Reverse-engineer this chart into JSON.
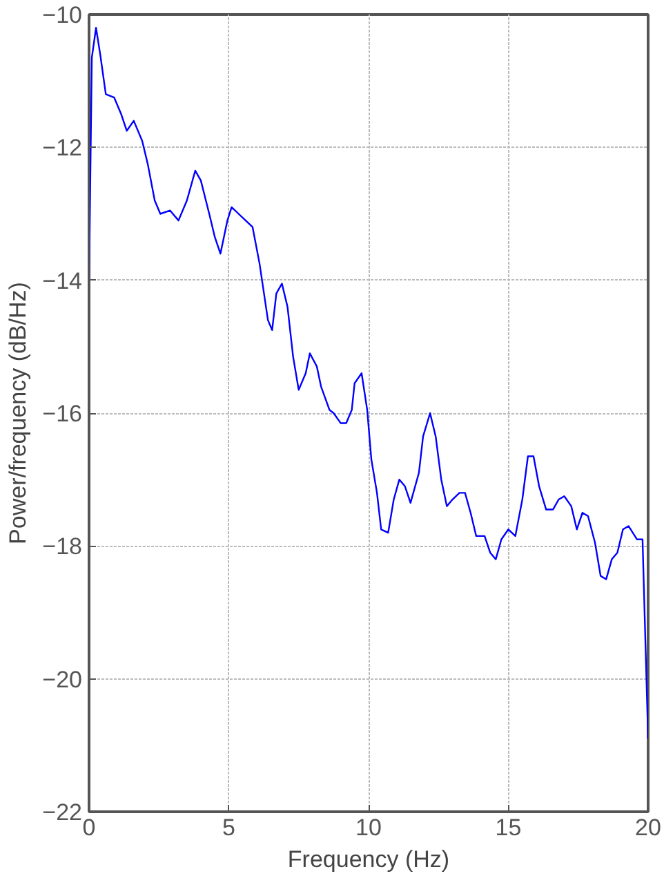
{
  "chart_data": {
    "type": "line",
    "xlabel": "Frequency (Hz)",
    "ylabel": "Power/frequency (dB/Hz)",
    "xlim": [
      0,
      20
    ],
    "ylim": [
      -22,
      -10
    ],
    "xticks": [
      0,
      5,
      10,
      15,
      20
    ],
    "yticks": [
      -22,
      -20,
      -18,
      -16,
      -14,
      -12,
      -10
    ],
    "grid": true,
    "line_style": "solid",
    "series": [
      {
        "color": "#0000ff",
        "x": [
          0,
          0.1,
          0.25,
          0.4,
          0.6,
          0.9,
          1.15,
          1.35,
          1.6,
          1.9,
          2.1,
          2.35,
          2.55,
          2.9,
          3.2,
          3.5,
          3.8,
          4.0,
          4.3,
          4.5,
          4.7,
          4.95,
          5.1,
          5.35,
          5.6,
          5.85,
          6.1,
          6.4,
          6.55,
          6.7,
          6.9,
          7.1,
          7.3,
          7.5,
          7.75,
          7.9,
          8.15,
          8.3,
          8.6,
          8.75,
          9.0,
          9.2,
          9.4,
          9.5,
          9.75,
          9.95,
          10.1,
          10.3,
          10.45,
          10.7,
          10.9,
          11.1,
          11.3,
          11.5,
          11.8,
          11.95,
          12.2,
          12.4,
          12.6,
          12.8,
          13.0,
          13.25,
          13.45,
          13.65,
          13.85,
          14.15,
          14.35,
          14.55,
          14.75,
          15.0,
          15.25,
          15.5,
          15.7,
          15.9,
          16.1,
          16.35,
          16.6,
          16.8,
          17.0,
          17.25,
          17.45,
          17.65,
          17.85,
          18.1,
          18.3,
          18.5,
          18.7,
          18.9,
          19.1,
          19.3,
          19.6,
          19.8,
          20.0
        ],
        "values": [
          -14.0,
          -10.65,
          -10.2,
          -10.6,
          -11.2,
          -11.25,
          -11.5,
          -11.75,
          -11.6,
          -11.9,
          -12.25,
          -12.8,
          -13.0,
          -12.95,
          -13.1,
          -12.8,
          -12.35,
          -12.5,
          -13.0,
          -13.35,
          -13.6,
          -13.1,
          -12.9,
          -13.0,
          -13.1,
          -13.2,
          -13.75,
          -14.6,
          -14.75,
          -14.2,
          -14.05,
          -14.4,
          -15.15,
          -15.65,
          -15.4,
          -15.1,
          -15.3,
          -15.6,
          -15.95,
          -16.0,
          -16.15,
          -16.15,
          -15.95,
          -15.55,
          -15.4,
          -15.95,
          -16.7,
          -17.2,
          -17.75,
          -17.8,
          -17.3,
          -17.0,
          -17.1,
          -17.35,
          -16.9,
          -16.35,
          -16.0,
          -16.35,
          -17.0,
          -17.4,
          -17.3,
          -17.2,
          -17.2,
          -17.5,
          -17.85,
          -17.85,
          -18.1,
          -18.2,
          -17.9,
          -17.75,
          -17.85,
          -17.3,
          -16.65,
          -16.65,
          -17.1,
          -17.45,
          -17.45,
          -17.3,
          -17.25,
          -17.4,
          -17.75,
          -17.5,
          -17.55,
          -17.95,
          -18.45,
          -18.5,
          -18.2,
          -18.1,
          -17.75,
          -17.7,
          -17.9,
          -17.9,
          -20.9
        ]
      }
    ]
  }
}
